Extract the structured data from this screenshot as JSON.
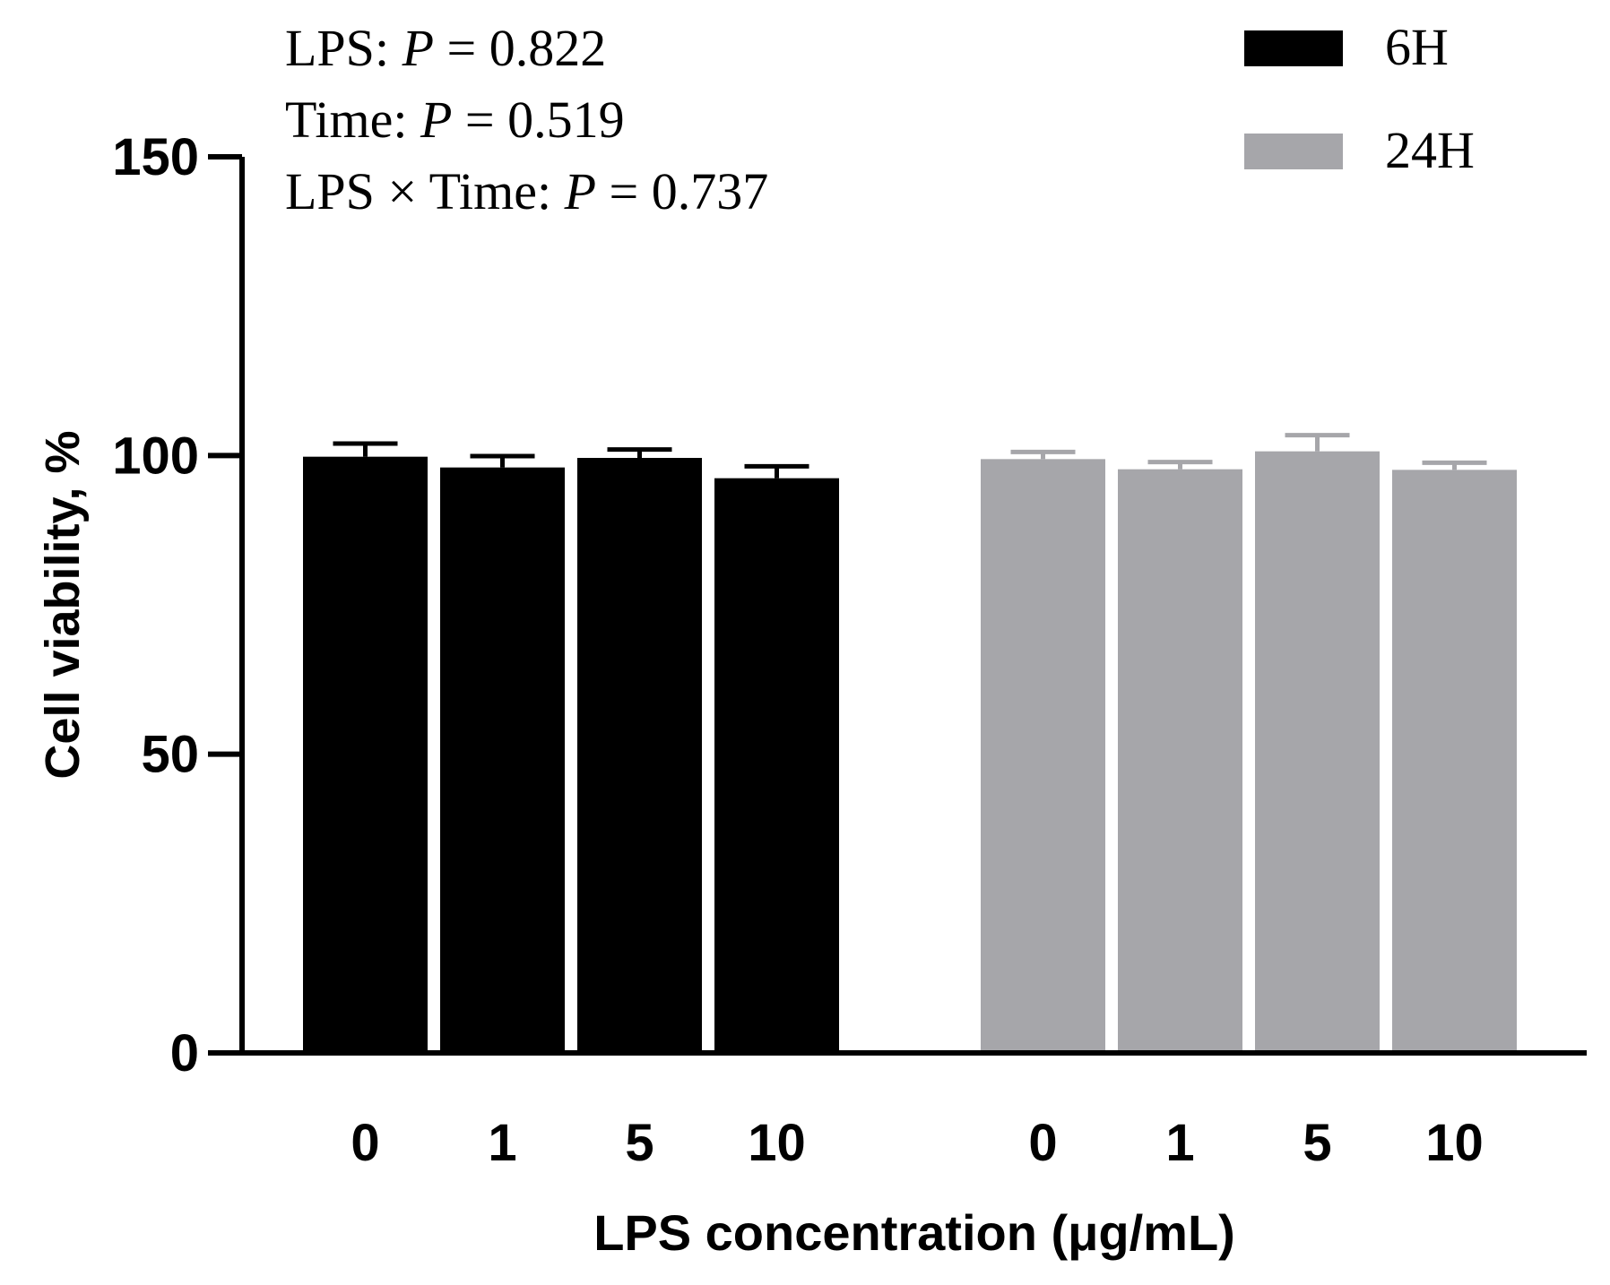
{
  "chart_data": {
    "type": "bar",
    "ylabel": "Cell viability, %",
    "xlabel": "LPS concentration (μg/mL)",
    "ylim": [
      0,
      150
    ],
    "yticks": [
      0,
      50,
      100,
      150
    ],
    "categories": [
      "0",
      "1",
      "5",
      "10"
    ],
    "series": [
      {
        "name": "6H",
        "color": "#000000",
        "values": [
          99.8,
          98.0,
          99.6,
          96.2
        ],
        "errors": [
          2.2,
          1.9,
          1.4,
          2.0
        ]
      },
      {
        "name": "24H",
        "color": "#a6a6aa",
        "values": [
          99.4,
          97.7,
          100.7,
          97.6
        ],
        "errors": [
          1.2,
          1.2,
          2.7,
          1.2
        ]
      }
    ],
    "annotations": [
      {
        "label": "LPS: ",
        "italic": "P",
        "rest": " = 0.822"
      },
      {
        "label": "Time: ",
        "italic": "P",
        "rest": " = 0.519"
      },
      {
        "label": "LPS × Time: ",
        "italic": "P",
        "rest": " = 0.737"
      }
    ],
    "legend": "top-right"
  }
}
